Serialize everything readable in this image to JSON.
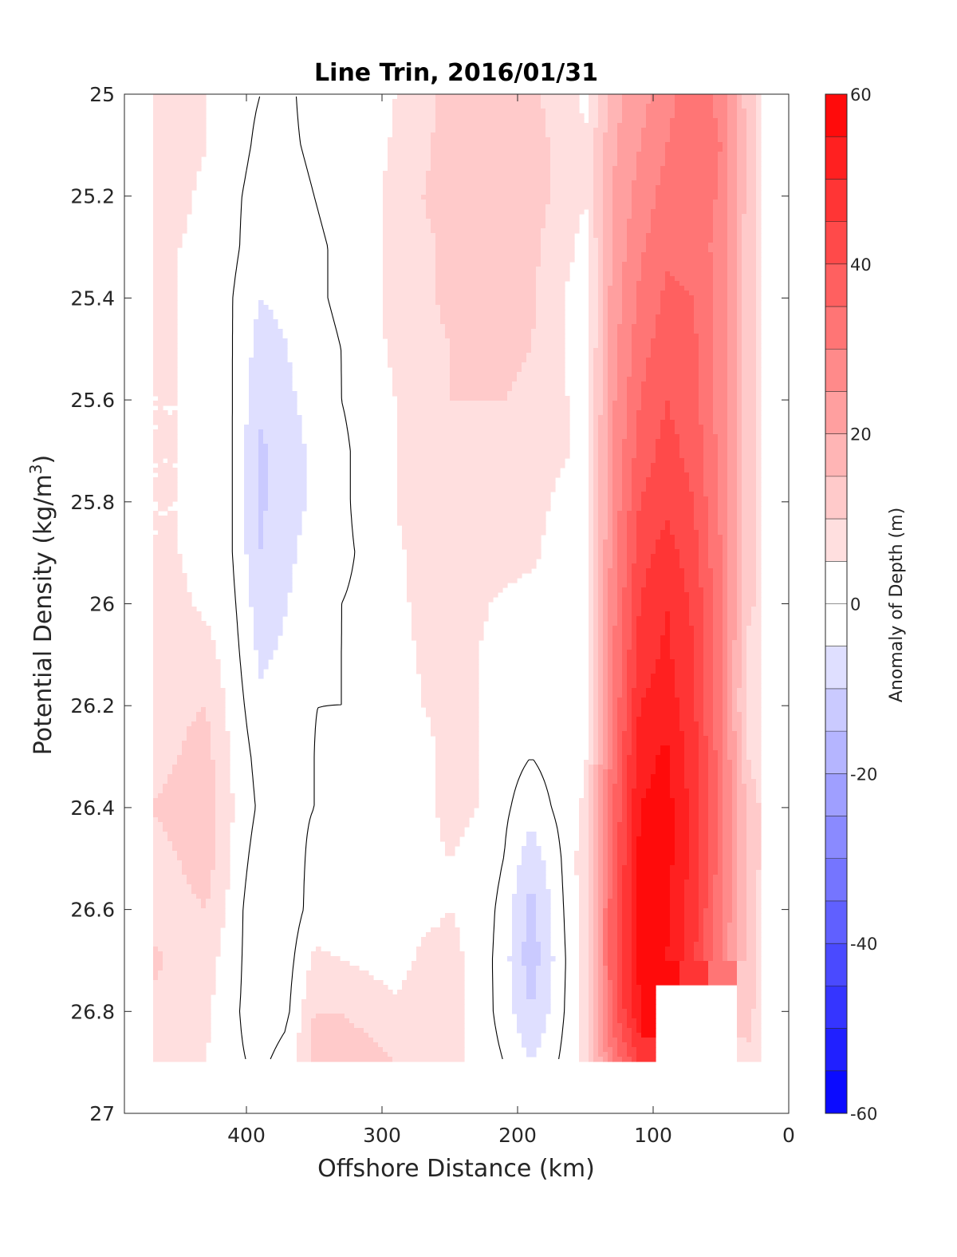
{
  "chart_data": {
    "type": "heatmap",
    "subtype": "filled contour",
    "title": "Line Trin, 2016/01/31",
    "xlabel": "Offshore Distance (km)",
    "ylabel_main": "Potential Density (kg/m",
    "ylabel_sup": "3",
    "ylabel_close": ")",
    "xlim": [
      490,
      0
    ],
    "x_reversed": true,
    "ylim": [
      25,
      27
    ],
    "y_reversed": true,
    "xticks": [
      400,
      300,
      200,
      100,
      0
    ],
    "xtick_labels": [
      "400",
      "300",
      "200",
      "100",
      "0"
    ],
    "yticks": [
      25,
      25.2,
      25.4,
      25.6,
      25.8,
      26,
      26.2,
      26.4,
      26.6,
      26.8,
      27
    ],
    "ytick_labels": [
      "25",
      "25.2",
      "25.4",
      "25.6",
      "25.8",
      "26",
      "26.2",
      "26.4",
      "26.6",
      "26.8",
      "27"
    ],
    "colorbar": {
      "label": "Anomaly of Depth (m)",
      "range": [
        -60,
        60
      ],
      "tick_values": [
        60,
        40,
        20,
        0,
        -20,
        -40,
        -60
      ],
      "tick_labels": [
        "60",
        "40",
        "20",
        "0",
        "-20",
        "-40",
        "-60"
      ],
      "level_step": 5,
      "colormap": "blue-white-red",
      "min_color": "#0000ff",
      "max_color": "#ff0000"
    },
    "grid_x": [
      490,
      470,
      450,
      430,
      410,
      390,
      370,
      350,
      330,
      310,
      290,
      270,
      250,
      230,
      210,
      190,
      170,
      150,
      130,
      110,
      90,
      70,
      50,
      30,
      10
    ],
    "grid_y": [
      25.0,
      25.1,
      25.2,
      25.3,
      25.4,
      25.5,
      25.6,
      25.7,
      25.8,
      25.9,
      26.0,
      26.1,
      26.2,
      26.3,
      26.4,
      26.5,
      26.6,
      26.7,
      26.8,
      26.9
    ],
    "data_extent": {
      "x_min": 20,
      "x_max": 470,
      "y_max": 26.9
    },
    "notes_values": "Approximate anomaly values read from filled contours; null = no data",
    "z": [
      [
        7,
        8,
        7,
        5,
        2,
        0,
        -1,
        2,
        2,
        1,
        5,
        8,
        12,
        13,
        12,
        11,
        8,
        4,
        18,
        23,
        28,
        33,
        28,
        12,
        3
      ],
      [
        7,
        8,
        7,
        5,
        2,
        -1,
        -1,
        1,
        2,
        2,
        6,
        9,
        12,
        14,
        13,
        12,
        9,
        5,
        19,
        25,
        30,
        35,
        30,
        14,
        3
      ],
      [
        6,
        7,
        6,
        4,
        1,
        -2,
        -2,
        0,
        2,
        3,
        7,
        10,
        12,
        13,
        12,
        12,
        9,
        5,
        20,
        27,
        32,
        34,
        29,
        13,
        3
      ],
      [
        5,
        6,
        5,
        4,
        1,
        -3,
        -3,
        -1,
        1,
        3,
        7,
        9,
        11,
        12,
        12,
        11,
        8,
        3,
        21,
        29,
        34,
        33,
        28,
        12,
        3
      ],
      [
        4,
        5,
        5,
        4,
        0,
        -5,
        -4,
        -1,
        1,
        3,
        7,
        9,
        11,
        11,
        11,
        11,
        6,
        1,
        22,
        31,
        36,
        35,
        28,
        12,
        3
      ],
      [
        4,
        5,
        5,
        3,
        0,
        -7,
        -5,
        -2,
        0,
        3,
        6,
        8,
        10,
        11,
        11,
        10,
        6,
        2,
        23,
        33,
        38,
        36,
        28,
        12,
        3
      ],
      [
        4,
        5,
        5,
        3,
        0,
        -9,
        -6,
        -3,
        0,
        2,
        5,
        8,
        10,
        10,
        10,
        9,
        6,
        3,
        24,
        35,
        40,
        37,
        28,
        12,
        3
      ],
      [
        4,
        5,
        5,
        3,
        0,
        -11,
        -7,
        -4,
        -1,
        2,
        5,
        8,
        9,
        9,
        9,
        8,
        6,
        4,
        25,
        37,
        42,
        38,
        28,
        12,
        3
      ],
      [
        5,
        5,
        5,
        3,
        0,
        -11,
        -7,
        -4,
        -1,
        2,
        5,
        8,
        8,
        8,
        8,
        7,
        4,
        2,
        26,
        40,
        44,
        40,
        29,
        12,
        3
      ],
      [
        5,
        5,
        5,
        3,
        0,
        -10,
        -6,
        -3,
        -1,
        1,
        4,
        7,
        8,
        7,
        7,
        6,
        3,
        1,
        27,
        43,
        47,
        42,
        30,
        12,
        3
      ],
      [
        6,
        6,
        6,
        4,
        1,
        -8,
        -5,
        -2,
        0,
        1,
        3,
        7,
        7,
        6,
        4,
        3,
        2,
        1,
        28,
        45,
        50,
        44,
        31,
        12,
        4
      ],
      [
        6,
        7,
        7,
        7,
        2,
        -6,
        -4,
        -1,
        0,
        1,
        2,
        6,
        6,
        5,
        3,
        2,
        1,
        1,
        29,
        47,
        51,
        45,
        31,
        8,
        2
      ],
      [
        7,
        8,
        9,
        10,
        3,
        -4,
        -2,
        0,
        0,
        0,
        1,
        5,
        6,
        5,
        3,
        2,
        2,
        2,
        30,
        50,
        53,
        46,
        31,
        7,
        2
      ],
      [
        8,
        9,
        10,
        12,
        4,
        -2,
        -1,
        0,
        1,
        0,
        0,
        4,
        6,
        5,
        2,
        0,
        2,
        4,
        32,
        53,
        56,
        47,
        32,
        10,
        3
      ],
      [
        10,
        10,
        11,
        14,
        5,
        -1,
        -1,
        0,
        1,
        1,
        1,
        4,
        6,
        5,
        1,
        -3,
        1,
        6,
        34,
        55,
        57,
        48,
        32,
        14,
        4
      ],
      [
        9,
        9,
        10,
        13,
        4,
        -3,
        -2,
        1,
        3,
        2,
        1,
        4,
        5,
        4,
        0,
        -8,
        -1,
        8,
        36,
        56,
        57,
        48,
        32,
        14,
        4
      ],
      [
        7,
        8,
        8,
        10,
        3,
        -5,
        -3,
        2,
        3,
        3,
        2,
        4,
        5,
        4,
        -2,
        -12,
        -2,
        8,
        38,
        57,
        56,
        47,
        31,
        13,
        3
      ],
      [
        10,
        11,
        9,
        7,
        2,
        -4,
        -2,
        6,
        5,
        4,
        3,
        6,
        6,
        4,
        -3,
        -13,
        -3,
        8,
        38,
        56,
        55,
        46,
        30,
        13,
        3
      ],
      [
        8,
        9,
        8,
        6,
        1,
        -3,
        -1,
        10,
        10,
        8,
        6,
        8,
        7,
        3,
        -2,
        -10,
        -2,
        7,
        37,
        55,
        null,
        null,
        null,
        12,
        2
      ],
      [
        7,
        8,
        7,
        5,
        1,
        -1,
        2,
        12,
        14,
        12,
        10,
        10,
        7,
        3,
        0,
        -5,
        0,
        6,
        30,
        45,
        null,
        null,
        null,
        9,
        2
      ]
    ]
  }
}
